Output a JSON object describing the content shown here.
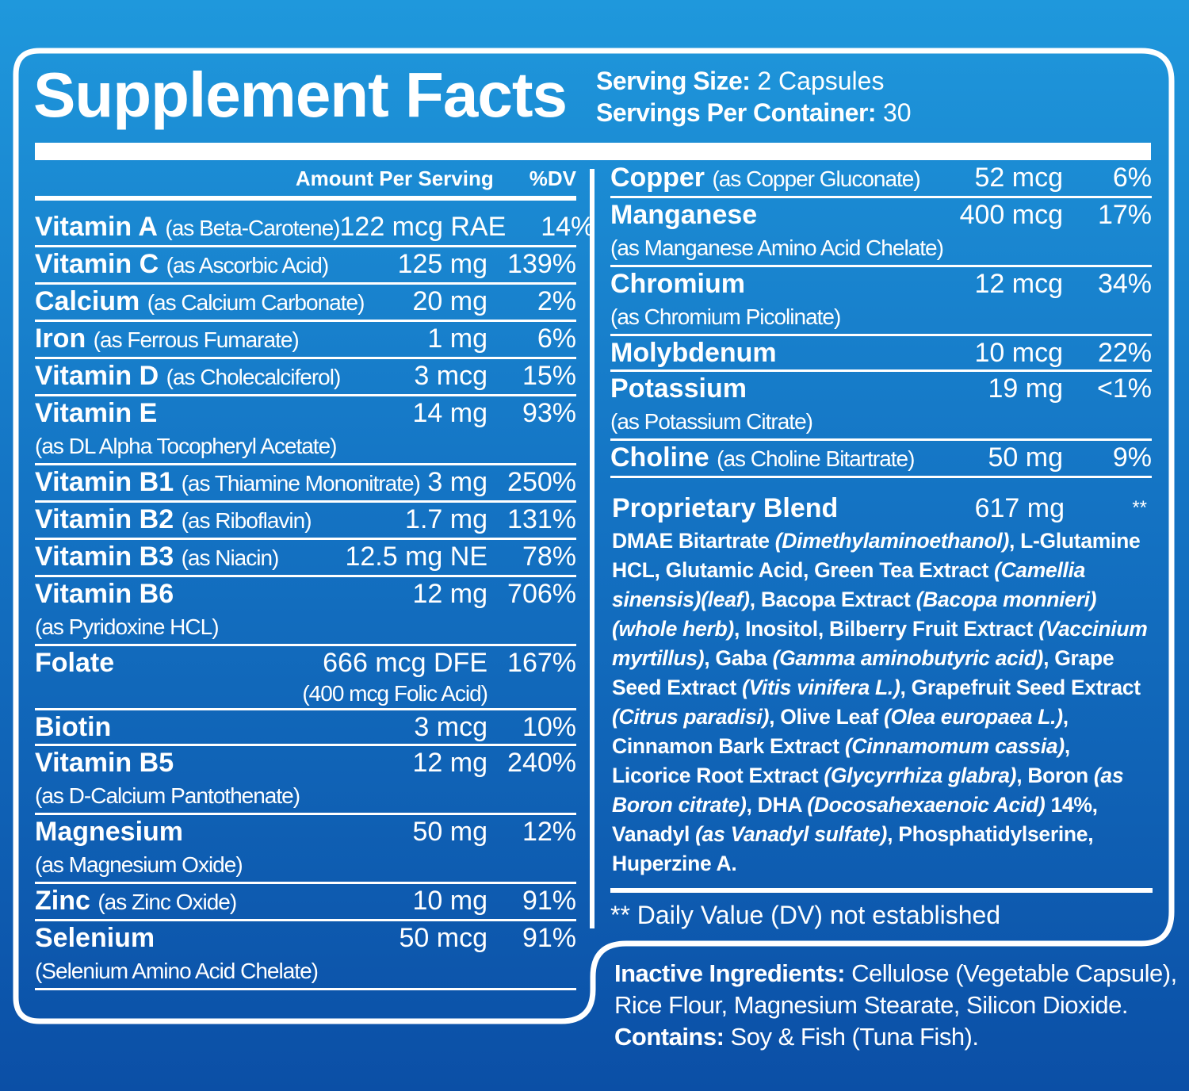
{
  "title": "Supplement Facts",
  "serving": [
    {
      "label": "Serving Size:",
      "value": "2 Capsules"
    },
    {
      "label": "Servings Per Container:",
      "value": "30"
    }
  ],
  "header": {
    "amount": "Amount Per Serving",
    "dv": "%DV"
  },
  "left_rows": [
    {
      "name": "Vitamin A",
      "source": "(as Beta-Carotene)",
      "amount": "122 mcg RAE",
      "dv": "14%"
    },
    {
      "name": "Vitamin C",
      "source": "(as Ascorbic Acid)",
      "amount": "125 mg",
      "dv": "139%"
    },
    {
      "name": "Calcium",
      "source": "(as Calcium Carbonate)",
      "amount": "20 mg",
      "dv": "2%"
    },
    {
      "name": "Iron",
      "source": "(as Ferrous Fumarate)",
      "amount": "1 mg",
      "dv": "6%"
    },
    {
      "name": "Vitamin D",
      "source": "(as Cholecalciferol)",
      "amount": "3 mcg",
      "dv": "15%"
    },
    {
      "name": "Vitamin E",
      "source": "(as DL Alpha Tocopheryl Acetate)",
      "amount": "14 mg",
      "dv": "93%"
    },
    {
      "name": "Vitamin B1",
      "source": "(as Thiamine Mononitrate)",
      "amount": "3 mg",
      "dv": "250%"
    },
    {
      "name": "Vitamin B2",
      "source": "(as Riboflavin)",
      "amount": "1.7 mg",
      "dv": "131%"
    },
    {
      "name": "Vitamin B3",
      "source": "(as Niacin)",
      "amount": "12.5 mg NE",
      "dv": "78%"
    },
    {
      "name": "Vitamin B6",
      "source": "(as Pyridoxine HCL)",
      "amount": "12 mg",
      "dv": "706%"
    },
    {
      "name": "Folate",
      "amount": "666 mcg DFE",
      "amount_note": "(400 mcg Folic Acid)",
      "dv": "167%"
    },
    {
      "name": "Biotin",
      "amount": "3 mcg",
      "dv": "10%"
    },
    {
      "name": "Vitamin B5",
      "source": "(as D-Calcium Pantothenate)",
      "amount": "12 mg",
      "dv": "240%"
    },
    {
      "name": "Magnesium",
      "source": "(as Magnesium Oxide)",
      "amount": "50 mg",
      "dv": "12%"
    },
    {
      "name": "Zinc",
      "source": "(as Zinc Oxide)",
      "amount": "10 mg",
      "dv": "91%"
    },
    {
      "name": "Selenium",
      "source": "(Selenium Amino Acid Chelate)",
      "amount": "50 mcg",
      "dv": "91%"
    }
  ],
  "right_rows": [
    {
      "name": "Copper",
      "source": "(as Copper Gluconate)",
      "amount": "52 mcg",
      "dv": "6%"
    },
    {
      "name": "Manganese",
      "source": "(as Manganese Amino Acid Chelate)",
      "amount": "400 mcg",
      "dv": "17%"
    },
    {
      "name": "Chromium",
      "source": "(as Chromium Picolinate)",
      "amount": "12 mcg",
      "dv": "34%"
    },
    {
      "name": "Molybdenum",
      "amount": "10 mcg",
      "dv": "22%"
    },
    {
      "name": "Potassium",
      "source": "(as Potassium Citrate)",
      "amount": "19 mg",
      "dv": "<1%"
    },
    {
      "name": "Choline",
      "source": "(as Choline Bitartrate)",
      "amount": "50 mg",
      "dv": "9%"
    }
  ],
  "blend": {
    "name": "Proprietary Blend",
    "amount": "617 mg",
    "dv": "**",
    "segments": [
      "DMAE Bitartrate ",
      "(Dimethylaminoethanol)",
      ", L-Glutamine HCL, Glutamic Acid, Green Tea Extract ",
      "(Camellia sinensis)(leaf)",
      ", Bacopa Extract ",
      "(Bacopa monnieri)(whole herb)",
      ", Inositol, Bilberry Fruit Extract ",
      "(Vaccinium myrtillus)",
      ", Gaba ",
      "(Gamma aminobutyric acid)",
      ", Grape Seed Extract ",
      "(Vitis vinifera L.)",
      ", Grapefruit Seed Extract ",
      "(Citrus paradisi)",
      ", Olive Leaf ",
      "(Olea europaea L.)",
      ", Cinnamon Bark Extract ",
      "(Cinnamomum cassia)",
      ", Licorice Root Extract ",
      "(Glycyrrhiza glabra)",
      ", Boron ",
      "(as Boron citrate)",
      ", DHA ",
      "(Docosahexaenoic Acid)",
      " 14%, Vanadyl ",
      "(as Vanadyl sulfate)",
      ", Phosphatidylserine, Huperzine A."
    ]
  },
  "footnote": "** Daily Value (DV) not established",
  "inactive": [
    {
      "label": "Inactive Ingredients:",
      "text": " Cellulose (Vegetable Capsule), Rice Flour, Magnesium Stearate, Silicon Dioxide."
    },
    {
      "label": "Contains:",
      "text": " Soy & Fish (Tuna Fish)."
    }
  ]
}
